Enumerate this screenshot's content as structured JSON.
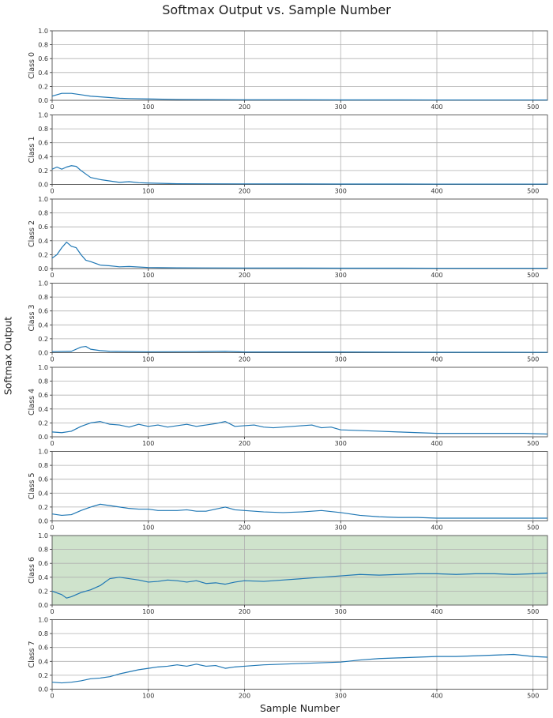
{
  "chart_data": {
    "type": "line",
    "title": "Softmax Output vs. Sample Number",
    "xlabel": "Sample Number",
    "ylabel": "Softmax Output",
    "xlim": [
      0,
      515
    ],
    "x_ticks": [
      0,
      100,
      200,
      300,
      400,
      500
    ],
    "ylim": [
      0,
      1.0
    ],
    "y_ticks": [
      "0.0",
      "0.2",
      "0.4",
      "0.6",
      "0.8",
      "1.0"
    ],
    "grid": true,
    "line_color": "#1f77b4",
    "highlight_color": "#cfe3cc",
    "highlighted_panel": "Class 6",
    "panels": [
      {
        "name": "Class 0",
        "highlight": false,
        "points": [
          [
            0,
            0.06
          ],
          [
            10,
            0.1
          ],
          [
            20,
            0.1
          ],
          [
            30,
            0.08
          ],
          [
            40,
            0.06
          ],
          [
            50,
            0.05
          ],
          [
            60,
            0.04
          ],
          [
            70,
            0.03
          ],
          [
            80,
            0.025
          ],
          [
            100,
            0.02
          ],
          [
            130,
            0.012
          ],
          [
            160,
            0.01
          ],
          [
            200,
            0.008
          ],
          [
            300,
            0.006
          ],
          [
            400,
            0.005
          ],
          [
            515,
            0.005
          ]
        ]
      },
      {
        "name": "Class 1",
        "highlight": false,
        "points": [
          [
            0,
            0.22
          ],
          [
            5,
            0.25
          ],
          [
            10,
            0.22
          ],
          [
            15,
            0.25
          ],
          [
            20,
            0.27
          ],
          [
            25,
            0.26
          ],
          [
            30,
            0.2
          ],
          [
            35,
            0.15
          ],
          [
            40,
            0.1
          ],
          [
            50,
            0.07
          ],
          [
            60,
            0.05
          ],
          [
            70,
            0.03
          ],
          [
            80,
            0.04
          ],
          [
            90,
            0.025
          ],
          [
            100,
            0.02
          ],
          [
            130,
            0.01
          ],
          [
            200,
            0.008
          ],
          [
            300,
            0.006
          ],
          [
            400,
            0.005
          ],
          [
            515,
            0.005
          ]
        ]
      },
      {
        "name": "Class 2",
        "highlight": false,
        "points": [
          [
            0,
            0.15
          ],
          [
            5,
            0.2
          ],
          [
            10,
            0.3
          ],
          [
            15,
            0.38
          ],
          [
            20,
            0.32
          ],
          [
            25,
            0.3
          ],
          [
            30,
            0.2
          ],
          [
            35,
            0.12
          ],
          [
            40,
            0.1
          ],
          [
            50,
            0.05
          ],
          [
            60,
            0.04
          ],
          [
            70,
            0.025
          ],
          [
            80,
            0.03
          ],
          [
            100,
            0.015
          ],
          [
            130,
            0.01
          ],
          [
            200,
            0.008
          ],
          [
            300,
            0.006
          ],
          [
            400,
            0.005
          ],
          [
            515,
            0.005
          ]
        ]
      },
      {
        "name": "Class 3",
        "highlight": false,
        "points": [
          [
            0,
            0.015
          ],
          [
            20,
            0.02
          ],
          [
            30,
            0.08
          ],
          [
            35,
            0.09
          ],
          [
            40,
            0.05
          ],
          [
            50,
            0.03
          ],
          [
            60,
            0.02
          ],
          [
            100,
            0.012
          ],
          [
            150,
            0.015
          ],
          [
            180,
            0.02
          ],
          [
            200,
            0.01
          ],
          [
            300,
            0.01
          ],
          [
            400,
            0.006
          ],
          [
            515,
            0.005
          ]
        ]
      },
      {
        "name": "Class 4",
        "highlight": false,
        "points": [
          [
            0,
            0.07
          ],
          [
            10,
            0.06
          ],
          [
            20,
            0.08
          ],
          [
            30,
            0.15
          ],
          [
            40,
            0.2
          ],
          [
            50,
            0.22
          ],
          [
            60,
            0.18
          ],
          [
            70,
            0.17
          ],
          [
            80,
            0.14
          ],
          [
            90,
            0.18
          ],
          [
            100,
            0.15
          ],
          [
            110,
            0.17
          ],
          [
            120,
            0.14
          ],
          [
            130,
            0.16
          ],
          [
            140,
            0.18
          ],
          [
            150,
            0.15
          ],
          [
            160,
            0.17
          ],
          [
            170,
            0.19
          ],
          [
            180,
            0.22
          ],
          [
            190,
            0.15
          ],
          [
            200,
            0.16
          ],
          [
            210,
            0.17
          ],
          [
            220,
            0.14
          ],
          [
            230,
            0.13
          ],
          [
            240,
            0.14
          ],
          [
            250,
            0.15
          ],
          [
            260,
            0.16
          ],
          [
            270,
            0.17
          ],
          [
            280,
            0.13
          ],
          [
            290,
            0.14
          ],
          [
            300,
            0.1
          ],
          [
            320,
            0.09
          ],
          [
            340,
            0.08
          ],
          [
            360,
            0.07
          ],
          [
            380,
            0.06
          ],
          [
            400,
            0.05
          ],
          [
            430,
            0.05
          ],
          [
            460,
            0.05
          ],
          [
            490,
            0.05
          ],
          [
            515,
            0.04
          ]
        ]
      },
      {
        "name": "Class 5",
        "highlight": false,
        "points": [
          [
            0,
            0.1
          ],
          [
            10,
            0.08
          ],
          [
            20,
            0.09
          ],
          [
            30,
            0.15
          ],
          [
            40,
            0.2
          ],
          [
            50,
            0.24
          ],
          [
            60,
            0.22
          ],
          [
            70,
            0.2
          ],
          [
            80,
            0.18
          ],
          [
            90,
            0.17
          ],
          [
            100,
            0.17
          ],
          [
            110,
            0.15
          ],
          [
            120,
            0.15
          ],
          [
            130,
            0.15
          ],
          [
            140,
            0.16
          ],
          [
            150,
            0.14
          ],
          [
            160,
            0.14
          ],
          [
            170,
            0.17
          ],
          [
            180,
            0.2
          ],
          [
            190,
            0.16
          ],
          [
            200,
            0.15
          ],
          [
            220,
            0.13
          ],
          [
            240,
            0.12
          ],
          [
            260,
            0.13
          ],
          [
            280,
            0.15
          ],
          [
            300,
            0.12
          ],
          [
            320,
            0.08
          ],
          [
            340,
            0.06
          ],
          [
            360,
            0.05
          ],
          [
            380,
            0.05
          ],
          [
            400,
            0.04
          ],
          [
            430,
            0.04
          ],
          [
            460,
            0.04
          ],
          [
            490,
            0.04
          ],
          [
            515,
            0.04
          ]
        ]
      },
      {
        "name": "Class 6",
        "highlight": true,
        "points": [
          [
            0,
            0.2
          ],
          [
            10,
            0.15
          ],
          [
            15,
            0.1
          ],
          [
            20,
            0.12
          ],
          [
            30,
            0.18
          ],
          [
            40,
            0.22
          ],
          [
            50,
            0.28
          ],
          [
            60,
            0.38
          ],
          [
            70,
            0.4
          ],
          [
            80,
            0.38
          ],
          [
            90,
            0.36
          ],
          [
            100,
            0.33
          ],
          [
            110,
            0.34
          ],
          [
            120,
            0.36
          ],
          [
            130,
            0.35
          ],
          [
            140,
            0.33
          ],
          [
            150,
            0.35
          ],
          [
            160,
            0.31
          ],
          [
            170,
            0.32
          ],
          [
            180,
            0.3
          ],
          [
            190,
            0.33
          ],
          [
            200,
            0.35
          ],
          [
            220,
            0.34
          ],
          [
            240,
            0.36
          ],
          [
            260,
            0.38
          ],
          [
            280,
            0.4
          ],
          [
            300,
            0.42
          ],
          [
            320,
            0.44
          ],
          [
            340,
            0.43
          ],
          [
            360,
            0.44
          ],
          [
            380,
            0.45
          ],
          [
            400,
            0.45
          ],
          [
            420,
            0.44
          ],
          [
            440,
            0.45
          ],
          [
            460,
            0.45
          ],
          [
            480,
            0.44
          ],
          [
            500,
            0.45
          ],
          [
            515,
            0.46
          ]
        ]
      },
      {
        "name": "Class 7",
        "highlight": false,
        "points": [
          [
            0,
            0.1
          ],
          [
            10,
            0.09
          ],
          [
            20,
            0.1
          ],
          [
            30,
            0.12
          ],
          [
            40,
            0.15
          ],
          [
            50,
            0.16
          ],
          [
            60,
            0.18
          ],
          [
            70,
            0.22
          ],
          [
            80,
            0.25
          ],
          [
            90,
            0.28
          ],
          [
            100,
            0.3
          ],
          [
            110,
            0.32
          ],
          [
            120,
            0.33
          ],
          [
            130,
            0.35
          ],
          [
            140,
            0.33
          ],
          [
            150,
            0.36
          ],
          [
            160,
            0.33
          ],
          [
            170,
            0.34
          ],
          [
            180,
            0.3
          ],
          [
            190,
            0.32
          ],
          [
            200,
            0.33
          ],
          [
            220,
            0.35
          ],
          [
            240,
            0.36
          ],
          [
            260,
            0.37
          ],
          [
            280,
            0.38
          ],
          [
            300,
            0.39
          ],
          [
            320,
            0.42
          ],
          [
            340,
            0.44
          ],
          [
            360,
            0.45
          ],
          [
            380,
            0.46
          ],
          [
            400,
            0.47
          ],
          [
            420,
            0.47
          ],
          [
            440,
            0.48
          ],
          [
            460,
            0.49
          ],
          [
            480,
            0.5
          ],
          [
            500,
            0.47
          ],
          [
            515,
            0.46
          ]
        ]
      }
    ]
  }
}
